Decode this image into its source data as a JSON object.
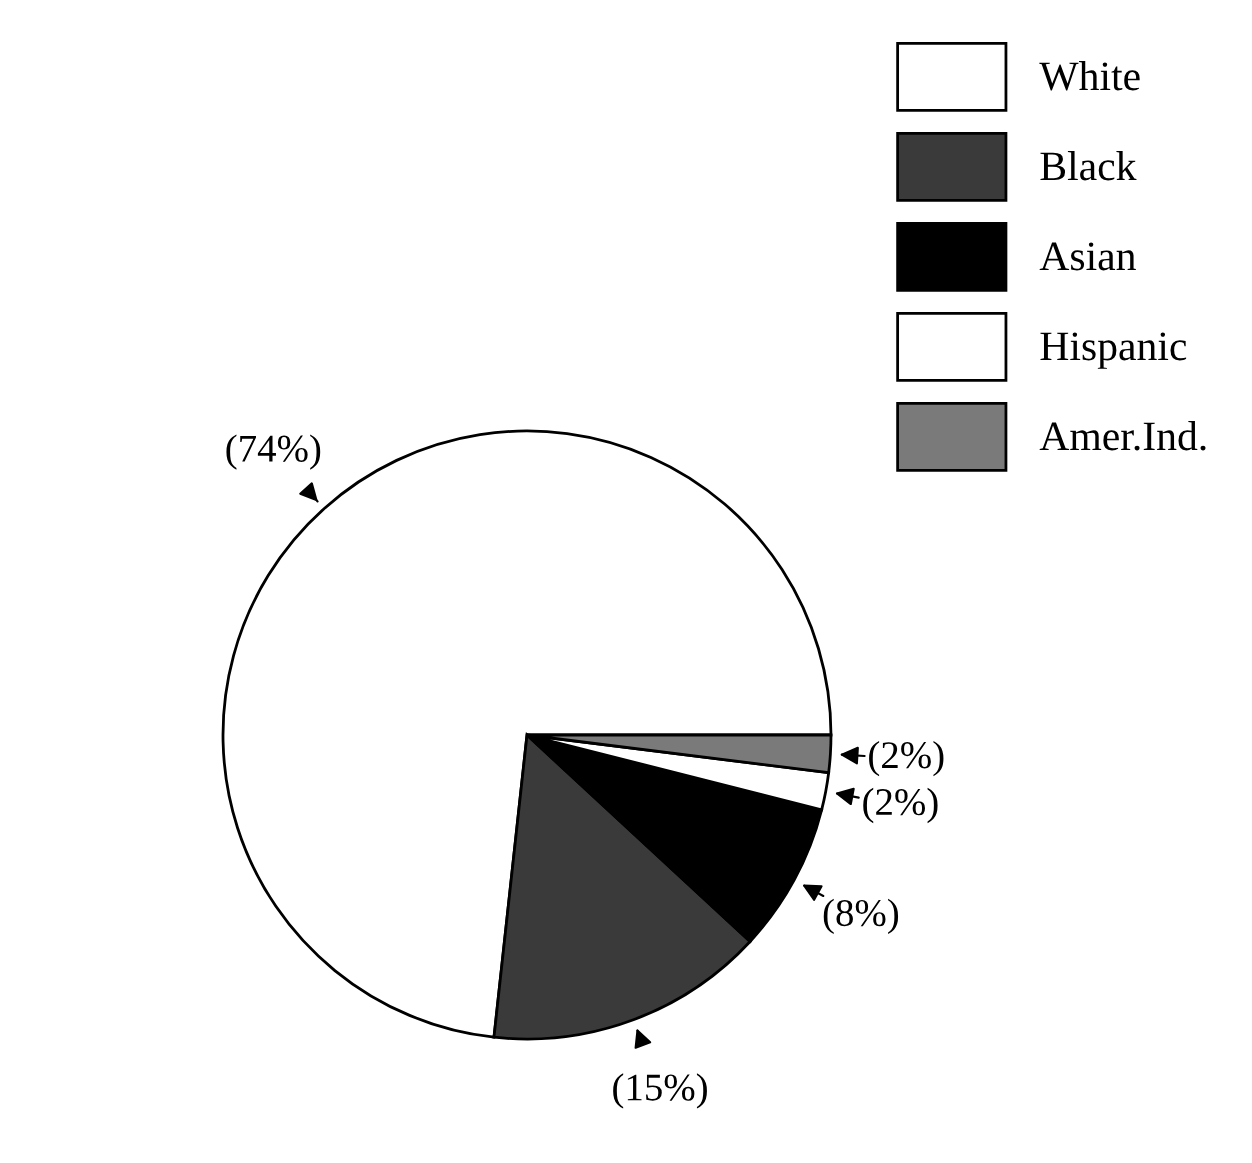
{
  "chart_data": {
    "type": "pie",
    "categories": [
      "White",
      "Black",
      "Asian",
      "Hispanic",
      "Amer.Ind."
    ],
    "values": [
      74,
      15,
      8,
      2,
      2
    ],
    "value_labels": [
      "(74%)",
      "(15%)",
      "(8%)",
      "(2%)",
      "(2%)"
    ],
    "colors": [
      "#ffffff",
      "#3a3a3a",
      "#000000",
      "#ffffff",
      "#7a7a7a"
    ],
    "legend": "top right"
  }
}
